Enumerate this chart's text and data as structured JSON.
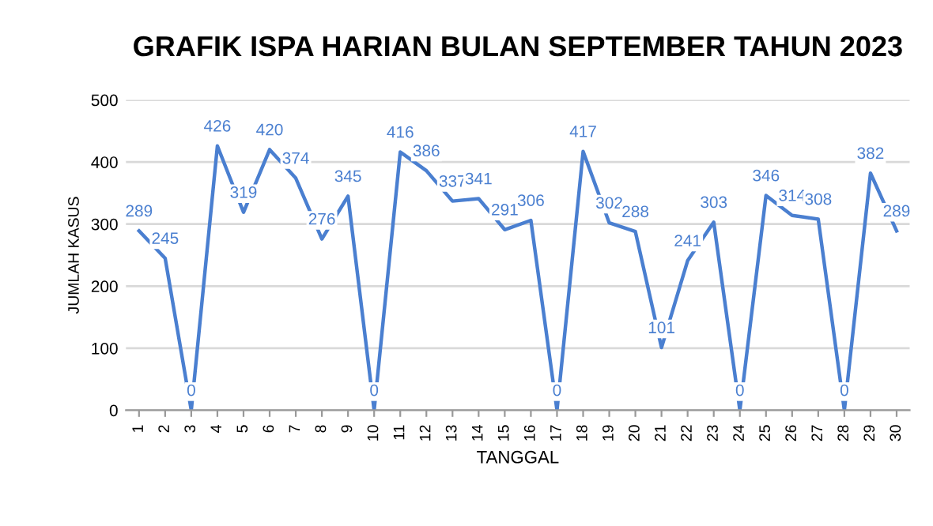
{
  "chart_data": {
    "type": "line",
    "title": "GRAFIK ISPA HARIAN BULAN SEPTEMBER TAHUN 2023",
    "xlabel": "TANGGAL",
    "ylabel": "JUMLAH KASUS",
    "categories": [
      "1",
      "2",
      "3",
      "4",
      "5",
      "6",
      "7",
      "8",
      "9",
      "10",
      "11",
      "12",
      "13",
      "14",
      "15",
      "16",
      "17",
      "18",
      "19",
      "20",
      "21",
      "22",
      "23",
      "24",
      "25",
      "26",
      "27",
      "28",
      "29",
      "30"
    ],
    "series": [
      {
        "color": "#4a7fd0",
        "values": [
          289,
          245,
          0,
          426,
          319,
          420,
          374,
          276,
          345,
          0,
          416,
          386,
          337,
          341,
          291,
          306,
          0,
          417,
          302,
          288,
          101,
          241,
          303,
          0,
          346,
          314,
          308,
          0,
          382,
          289
        ]
      }
    ],
    "ylim": [
      0,
      500
    ],
    "yticks": [
      0,
      100,
      200,
      300,
      400,
      500
    ],
    "grid": "y",
    "data_labels": true,
    "marker": "none",
    "line_style": "solid"
  }
}
